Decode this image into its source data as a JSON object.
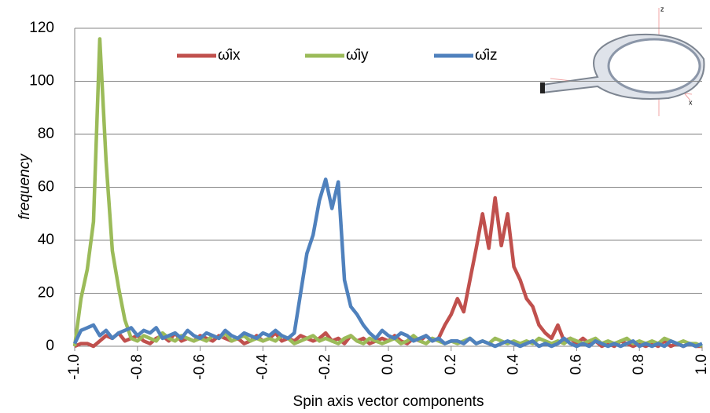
{
  "chart_data": {
    "type": "line",
    "x_label": "Spin axis vector components",
    "y_label": "frequency",
    "x": [
      -1.0,
      -0.98,
      -0.96,
      -0.94,
      -0.92,
      -0.9,
      -0.88,
      -0.86,
      -0.84,
      -0.82,
      -0.8,
      -0.78,
      -0.76,
      -0.74,
      -0.72,
      -0.7,
      -0.68,
      -0.66,
      -0.64,
      -0.62,
      -0.6,
      -0.58,
      -0.56,
      -0.54,
      -0.52,
      -0.5,
      -0.48,
      -0.46,
      -0.44,
      -0.42,
      -0.4,
      -0.38,
      -0.36,
      -0.34,
      -0.32,
      -0.3,
      -0.28,
      -0.26,
      -0.24,
      -0.22,
      -0.2,
      -0.18,
      -0.16,
      -0.14,
      -0.12,
      -0.1,
      -0.08,
      -0.06,
      -0.04,
      -0.02,
      0.0,
      0.02,
      0.04,
      0.06,
      0.08,
      0.1,
      0.12,
      0.14,
      0.16,
      0.18,
      0.2,
      0.22,
      0.24,
      0.26,
      0.28,
      0.3,
      0.32,
      0.34,
      0.36,
      0.38,
      0.4,
      0.42,
      0.44,
      0.46,
      0.48,
      0.5,
      0.52,
      0.54,
      0.56,
      0.58,
      0.6,
      0.62,
      0.64,
      0.66,
      0.68,
      0.7,
      0.72,
      0.74,
      0.76,
      0.78,
      0.8,
      0.82,
      0.84,
      0.86,
      0.88,
      0.9,
      0.92,
      0.94,
      0.96,
      0.98,
      1.0
    ],
    "series": [
      {
        "name": "ω̂ix",
        "color": "#c0504d",
        "values": [
          0,
          1,
          1,
          0,
          2,
          4,
          3,
          5,
          2,
          3,
          4,
          2,
          1,
          3,
          4,
          2,
          5,
          2,
          3,
          2,
          4,
          3,
          2,
          4,
          3,
          2,
          3,
          1,
          2,
          4,
          2,
          3,
          5,
          2,
          3,
          2,
          4,
          3,
          2,
          3,
          5,
          2,
          3,
          1,
          4,
          2,
          3,
          1,
          2,
          3,
          2,
          4,
          2,
          1,
          3,
          2,
          4,
          2,
          3,
          8,
          12,
          18,
          13,
          25,
          37,
          50,
          37,
          56,
          38,
          50,
          30,
          25,
          18,
          15,
          8,
          5,
          3,
          8,
          2,
          3,
          1,
          3,
          1,
          2,
          0,
          1,
          0,
          2,
          1,
          0,
          1,
          0,
          1,
          0,
          2,
          0,
          1,
          0,
          1,
          0,
          0
        ]
      },
      {
        "name": "ω̂iy",
        "color": "#9bbb59",
        "values": [
          0,
          18,
          29,
          47,
          116,
          70,
          36,
          22,
          10,
          3,
          2,
          4,
          3,
          2,
          5,
          3,
          2,
          4,
          3,
          2,
          3,
          2,
          4,
          3,
          5,
          2,
          3,
          4,
          2,
          3,
          2,
          3,
          2,
          4,
          3,
          1,
          2,
          3,
          4,
          2,
          3,
          2,
          1,
          3,
          4,
          2,
          1,
          3,
          2,
          1,
          2,
          3,
          1,
          2,
          4,
          2,
          1,
          3,
          2,
          1,
          2,
          1,
          2,
          3,
          1,
          2,
          1,
          3,
          2,
          1,
          2,
          1,
          2,
          1,
          3,
          2,
          1,
          2,
          1,
          3,
          2,
          1,
          2,
          3,
          1,
          2,
          1,
          2,
          3,
          1,
          2,
          1,
          2,
          1,
          3,
          2,
          1,
          2,
          1,
          1,
          0
        ]
      },
      {
        "name": "ω̂iz",
        "color": "#4f81bd",
        "values": [
          1,
          6,
          7,
          8,
          4,
          6,
          3,
          5,
          6,
          7,
          4,
          6,
          5,
          7,
          3,
          4,
          5,
          3,
          6,
          4,
          3,
          5,
          4,
          3,
          6,
          4,
          3,
          5,
          4,
          3,
          5,
          4,
          6,
          4,
          3,
          5,
          20,
          35,
          42,
          55,
          63,
          52,
          62,
          25,
          15,
          12,
          8,
          5,
          3,
          6,
          4,
          3,
          5,
          4,
          2,
          3,
          4,
          2,
          3,
          1,
          2,
          2,
          1,
          3,
          1,
          2,
          1,
          0,
          1,
          2,
          1,
          0,
          1,
          2,
          0,
          1,
          0,
          1,
          3,
          1,
          0,
          1,
          0,
          2,
          1,
          0,
          1,
          0,
          1,
          2,
          0,
          1,
          0,
          1,
          0,
          2,
          1,
          0,
          1,
          0,
          1
        ]
      }
    ],
    "xlim": [
      -1.0,
      1.0
    ],
    "xticks": [
      {
        "value": -1.0,
        "label": "-1.0"
      },
      {
        "value": -0.8,
        "label": "-0.8"
      },
      {
        "value": -0.6,
        "label": "-0.6"
      },
      {
        "value": -0.4,
        "label": "-0.4"
      },
      {
        "value": -0.2,
        "label": "-0.2"
      },
      {
        "value": 0.0,
        "label": "0.0"
      },
      {
        "value": 0.2,
        "label": "0.2"
      },
      {
        "value": 0.4,
        "label": "0.4"
      },
      {
        "value": 0.6,
        "label": "0.6"
      },
      {
        "value": 0.8,
        "label": "0.8"
      },
      {
        "value": 1.0,
        "label": "1.0"
      }
    ],
    "ylim": [
      0,
      120
    ],
    "yticks": [
      0,
      20,
      40,
      60,
      80,
      100,
      120
    ],
    "grid": true
  }
}
